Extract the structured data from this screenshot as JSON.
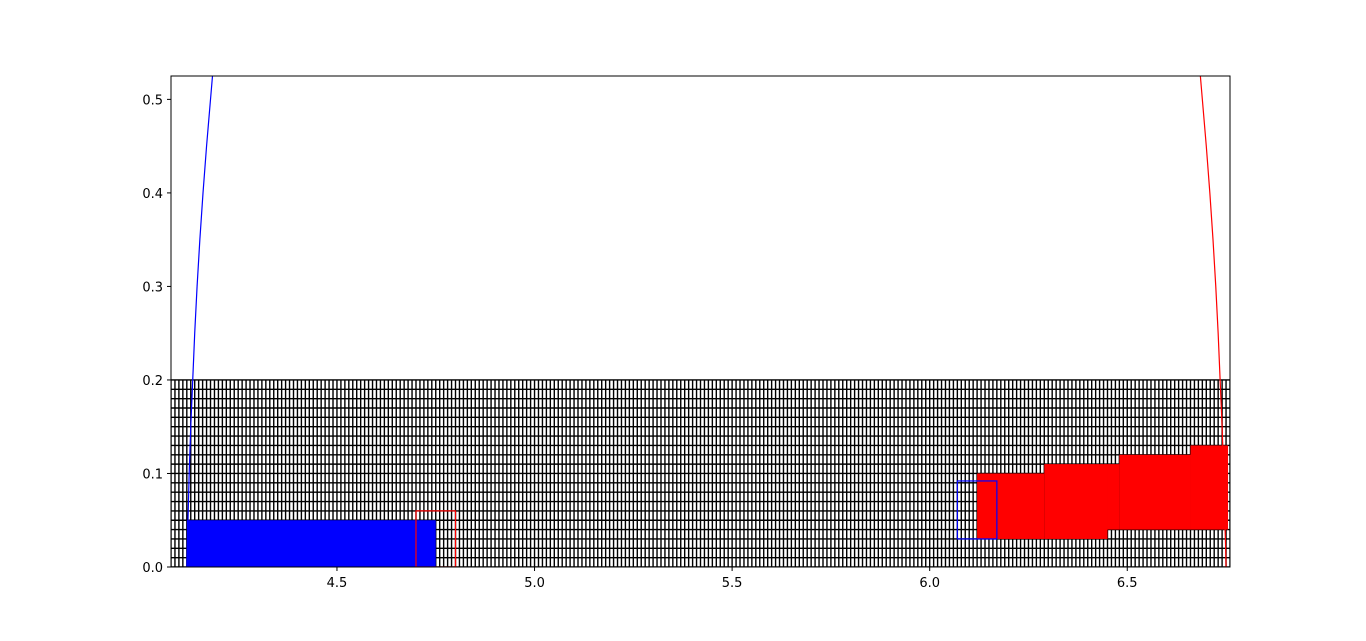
{
  "chart_data": {
    "type": "area",
    "title": "",
    "xlabel": "",
    "ylabel": "",
    "xlim": [
      4.08,
      6.76
    ],
    "ylim": [
      0.0,
      0.525
    ],
    "grid": false,
    "legend": "none",
    "x_ticks": [
      "4.5",
      "5.0",
      "5.5",
      "6.0",
      "6.5"
    ],
    "x_tick_values": [
      4.5,
      5.0,
      5.5,
      6.0,
      6.5
    ],
    "y_ticks": [
      "0.0",
      "0.1",
      "0.2",
      "0.3",
      "0.4",
      "0.5"
    ],
    "y_tick_values": [
      0.0,
      0.1,
      0.2,
      0.3,
      0.4,
      0.5
    ],
    "hatched_band": {
      "x": [
        4.08,
        6.76
      ],
      "y": [
        0.0,
        0.2
      ],
      "color": "#000000",
      "x_step": 0.01,
      "y_step": 0.01
    },
    "curves": [
      {
        "color": "#0000ff",
        "points": [
          [
            4.12,
            0.0
          ],
          [
            4.121,
            0.02
          ],
          [
            4.123,
            0.05
          ],
          [
            4.126,
            0.1
          ],
          [
            4.13,
            0.15
          ],
          [
            4.135,
            0.2
          ],
          [
            4.14,
            0.25
          ],
          [
            4.146,
            0.3
          ],
          [
            4.153,
            0.35
          ],
          [
            4.161,
            0.4
          ],
          [
            4.17,
            0.45
          ],
          [
            4.18,
            0.5
          ],
          [
            4.19,
            0.55
          ]
        ]
      },
      {
        "color": "#ff0000",
        "points": [
          [
            6.75,
            0.0
          ],
          [
            6.749,
            0.02
          ],
          [
            6.747,
            0.05
          ],
          [
            6.744,
            0.1
          ],
          [
            6.74,
            0.15
          ],
          [
            6.735,
            0.2
          ],
          [
            6.73,
            0.25
          ],
          [
            6.724,
            0.3
          ],
          [
            6.717,
            0.35
          ],
          [
            6.709,
            0.4
          ],
          [
            6.7,
            0.45
          ],
          [
            6.69,
            0.5
          ],
          [
            6.68,
            0.55
          ]
        ]
      }
    ],
    "filled_rects": [
      {
        "color": "#0000ff",
        "x0": 4.12,
        "x1": 4.75,
        "y0": 0.0,
        "y1": 0.05
      },
      {
        "color": "#ff0000",
        "x0": 6.12,
        "x1": 6.29,
        "y0": 0.03,
        "y1": 0.1
      },
      {
        "color": "#ff0000",
        "x0": 6.29,
        "x1": 6.45,
        "y0": 0.03,
        "y1": 0.11
      },
      {
        "color": "#ff0000",
        "x0": 6.45,
        "x1": 6.48,
        "y0": 0.04,
        "y1": 0.11
      },
      {
        "color": "#ff0000",
        "x0": 6.48,
        "x1": 6.66,
        "y0": 0.04,
        "y1": 0.12
      },
      {
        "color": "#ff0000",
        "x0": 6.66,
        "x1": 6.755,
        "y0": 0.04,
        "y1": 0.13
      }
    ],
    "outlined_rects": [
      {
        "color": "#ff0000",
        "x0": 4.7,
        "x1": 4.8,
        "y0": 0.0,
        "y1": 0.06
      },
      {
        "color": "#0000ff",
        "x0": 6.07,
        "x1": 6.17,
        "y0": 0.03,
        "y1": 0.092
      }
    ]
  }
}
